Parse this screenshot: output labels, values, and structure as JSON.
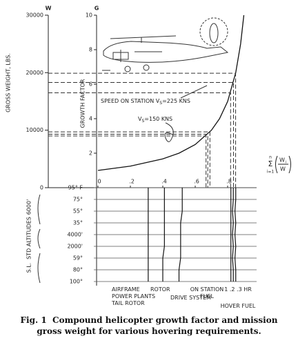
{
  "top_chart": {
    "type": "line",
    "w_symbol": "W",
    "g_symbol": "G",
    "y_label": "GROSS WEIGHT, LBS.",
    "y2_label": "GROWTH FACTOR",
    "ylim": [
      0,
      30000
    ],
    "yticks": [
      0,
      10000,
      20000,
      30000
    ],
    "y2lim": [
      0,
      10
    ],
    "y2ticks": [
      2,
      4,
      6,
      8,
      10
    ],
    "xlim": [
      0,
      1
    ],
    "xticks": [
      0,
      {
        "value": 0.2,
        "label": ".2"
      },
      {
        "value": 0.4,
        "label": ".4"
      },
      {
        "value": 0.6,
        "label": ".6"
      },
      {
        "value": 0.8,
        "label": ".8"
      }
    ],
    "x_label": {
      "top": "n",
      "sum": "Σ",
      "bottom": "i=1",
      "numerator": "W",
      "numerator_sub": "i",
      "denominator": "W"
    },
    "curve": {
      "x": [
        0,
        0.2,
        0.4,
        0.5,
        0.6,
        0.7,
        0.75,
        0.8,
        0.85,
        0.88,
        0.9
      ],
      "G": [
        1,
        1.25,
        1.67,
        2,
        2.5,
        3.33,
        4,
        5,
        6.67,
        8.33,
        10
      ]
    },
    "speeds": [
      {
        "prefix": "SPEED ON STATION V",
        "subscript": "S",
        "suffix": "=225 KNS",
        "W": [
          19900,
          18300,
          16500
        ]
      },
      {
        "prefix": "V",
        "subscript": "S",
        "suffix": "=150 KNS",
        "W": [
          9700,
          9300,
          9000
        ]
      }
    ]
  },
  "bottom_chart": {
    "type": "line",
    "rows": [
      "95° F",
      "75°",
      "55°",
      "35°",
      "4000'",
      "2000'",
      "59°",
      "80°",
      "100°"
    ],
    "groups": [
      "6000'",
      "STD ALTITUDES",
      "S.L."
    ],
    "components": [
      {
        "label": "AIRFRAME POWER PLANTS TAIL ROTOR",
        "values": [
          0.31,
          0.31,
          0.31,
          0.31,
          0.31,
          0.31,
          0.31,
          0.31,
          0.31
        ]
      },
      {
        "label": "ROTOR",
        "values": [
          0.41,
          0.41,
          0.41,
          0.41,
          0.41,
          0.41,
          0.4,
          0.4,
          0.4
        ]
      },
      {
        "label": "DRIVE SYSTEM",
        "values": [
          0.52,
          0.52,
          0.52,
          0.51,
          0.51,
          0.51,
          0.51,
          0.5,
          0.5
        ]
      },
      {
        "label": "ON STATION FUEL",
        "values": [
          0.82,
          0.82,
          0.82,
          0.82,
          0.82,
          0.82,
          0.82,
          0.82,
          0.82
        ]
      },
      {
        "label": "1 .2 .3 HR",
        "values": [
          0.835,
          0.835,
          0.83,
          0.835,
          0.83,
          0.835,
          0.83,
          0.835,
          0.835
        ]
      },
      {
        "label": "HOVER FUEL",
        "values": [
          0.85,
          0.85,
          0.845,
          0.85,
          0.845,
          0.85,
          0.845,
          0.85,
          0.85
        ]
      }
    ]
  },
  "caption": {
    "label": "Fig. 1",
    "text": "Compound helicopter growth factor and mission gross weight for various hovering requirements."
  }
}
